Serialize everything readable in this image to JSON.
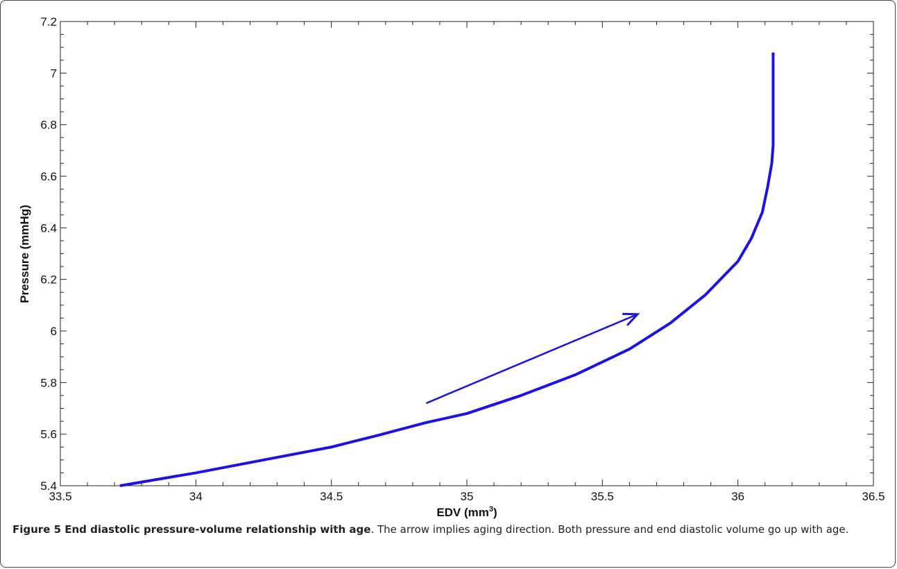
{
  "chart_data": {
    "type": "line",
    "xlabel": "EDV (mm",
    "xlabel_sup": "3",
    "xlabel_end": ")",
    "ylabel": "Pressure (mmHg)",
    "xlim": [
      33.5,
      36.5
    ],
    "ylim": [
      5.4,
      7.2
    ],
    "x_ticks": [
      "33.5",
      "34",
      "34.5",
      "35",
      "35.5",
      "36",
      "36.5"
    ],
    "y_ticks": [
      "5.4",
      "5.6",
      "5.8",
      "6",
      "6.2",
      "6.4",
      "6.6",
      "6.8",
      "7",
      "7.2"
    ],
    "grid": false,
    "series": [
      {
        "color": "#1a12e6",
        "x": [
          33.72,
          34.0,
          34.25,
          34.5,
          34.67,
          34.85,
          35.0,
          35.2,
          35.4,
          35.6,
          35.75,
          35.88,
          36.0,
          36.05,
          36.09,
          36.11,
          36.125,
          36.13,
          36.13
        ],
        "y": [
          5.4,
          5.45,
          5.5,
          5.55,
          5.595,
          5.645,
          5.68,
          5.75,
          5.83,
          5.93,
          6.03,
          6.14,
          6.27,
          6.36,
          6.46,
          6.56,
          6.65,
          6.72,
          7.08
        ]
      }
    ],
    "annotations": [
      {
        "type": "arrow",
        "label": "aging direction",
        "x1": 34.85,
        "y1": 5.72,
        "x2": 35.63,
        "y2": 6.065,
        "color": "#1a12e6"
      }
    ]
  },
  "caption": {
    "title": "Figure 5 End diastolic pressure-volume relationship with age",
    "text": ". The arrow implies aging direction. Both pressure and end diastolic volume go up with age."
  }
}
